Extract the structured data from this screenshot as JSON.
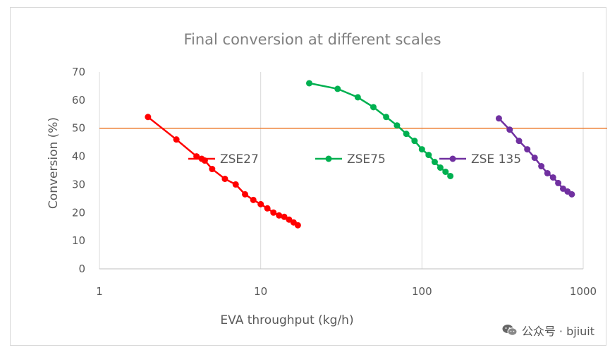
{
  "chart_data": {
    "type": "line",
    "title": "Final conversion at different scales",
    "xlabel": "EVA throughput (kg/h)",
    "ylabel": "Conversion (%)",
    "xscale": "log",
    "xlim": [
      1,
      1000
    ],
    "ylim": [
      0,
      70
    ],
    "xticks": [
      1,
      10,
      100,
      1000
    ],
    "xtick_labels": [
      "1",
      "10",
      "100",
      "1000"
    ],
    "yticks": [
      0,
      10,
      20,
      30,
      40,
      50,
      60,
      70
    ],
    "ytick_labels": [
      "0",
      "10",
      "20",
      "30",
      "40",
      "50",
      "60",
      "70"
    ],
    "grid": "vertical major gridlines",
    "legend_placement": "inside plot, middle row",
    "reference_line": {
      "y": 50,
      "color": "#ed7d31"
    },
    "series": [
      {
        "name": "ZSE27",
        "color": "#ff0000",
        "x": [
          2,
          3,
          4,
          4.5,
          5,
          6,
          7,
          8,
          9,
          10,
          11,
          12,
          13,
          14,
          15,
          16,
          17
        ],
        "y": [
          54,
          46,
          40,
          38.5,
          35.5,
          32,
          30,
          26.5,
          24.5,
          23,
          21.5,
          20,
          19,
          18.5,
          17.5,
          16.5,
          15.5
        ]
      },
      {
        "name": "ZSE75",
        "color": "#00b050",
        "x": [
          20,
          30,
          40,
          50,
          60,
          70,
          80,
          90,
          100,
          110,
          120,
          130,
          140,
          150
        ],
        "y": [
          66,
          64,
          61,
          57.5,
          54,
          51,
          48,
          45.5,
          42.5,
          40.5,
          38,
          36,
          34.5,
          33
        ]
      },
      {
        "name": "ZSE 135",
        "color": "#7030a0",
        "x": [
          300,
          350,
          400,
          450,
          500,
          550,
          600,
          650,
          700,
          750,
          800,
          850
        ],
        "y": [
          53.5,
          49.5,
          45.5,
          42.5,
          39.5,
          36.5,
          34,
          32.5,
          30.5,
          28.5,
          27.5,
          26.5
        ]
      }
    ]
  },
  "watermark": {
    "text": "公众号 · bjiuit",
    "icon": "wechat-icon"
  }
}
